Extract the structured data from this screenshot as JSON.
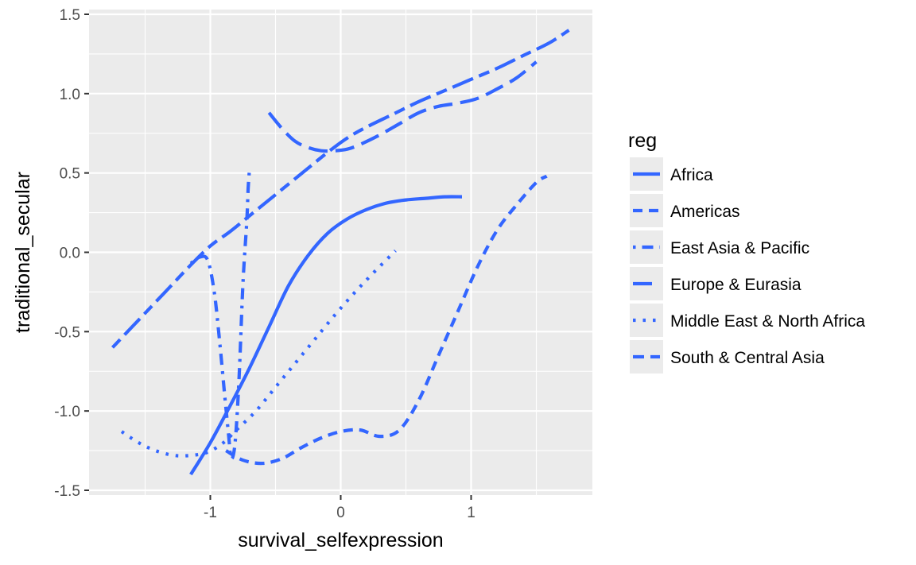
{
  "chart_data": {
    "type": "line",
    "xlabel": "survival_selfexpression",
    "ylabel": "traditional_secular",
    "xlim": [
      -1.93,
      1.93
    ],
    "ylim": [
      -1.53,
      1.53
    ],
    "x_ticks": [
      -1,
      0,
      1
    ],
    "x_tick_labels": [
      "-1",
      "0",
      "1"
    ],
    "y_ticks": [
      -1.5,
      -1.0,
      -0.5,
      0.0,
      0.5,
      1.0,
      1.5
    ],
    "y_tick_labels": [
      "-1.5",
      "-1.0",
      "-0.5",
      "0.0",
      "0.5",
      "1.0",
      "1.5"
    ],
    "grid": true,
    "panel_background": "#ebebeb",
    "line_color": "#3366ff",
    "legend": {
      "title": "reg",
      "placement": "right",
      "entries": [
        "Africa",
        "Americas",
        "East Asia & Pacific",
        "Europe & Eurasia",
        "Middle East & North Africa",
        "South & Central Asia"
      ]
    },
    "series": [
      {
        "name": "Africa",
        "linetype": "solid",
        "x": [
          -1.15,
          -1.0,
          -0.85,
          -0.7,
          -0.55,
          -0.4,
          -0.25,
          -0.1,
          0.05,
          0.2,
          0.35,
          0.5,
          0.65,
          0.8,
          0.93
        ],
        "y": [
          -1.4,
          -1.2,
          -0.97,
          -0.73,
          -0.47,
          -0.21,
          -0.02,
          0.12,
          0.21,
          0.27,
          0.31,
          0.33,
          0.34,
          0.35,
          0.35
        ]
      },
      {
        "name": "Americas",
        "linetype": "dashed",
        "x": [
          -0.88,
          -0.75,
          -0.6,
          -0.45,
          -0.3,
          -0.15,
          0.0,
          0.15,
          0.3,
          0.45,
          0.6,
          0.75,
          0.9,
          1.05,
          1.2,
          1.35,
          1.5,
          1.58
        ],
        "y": [
          -1.25,
          -1.31,
          -1.33,
          -1.3,
          -1.23,
          -1.17,
          -1.13,
          -1.12,
          -1.16,
          -1.12,
          -0.93,
          -0.65,
          -0.37,
          -0.09,
          0.14,
          0.3,
          0.44,
          0.48
        ]
      },
      {
        "name": "East Asia & Pacific",
        "linetype": "dotdash",
        "x": [
          -1.15,
          -1.08,
          -1.02,
          -0.97,
          -0.93,
          -0.89,
          -0.86,
          -0.84,
          -0.81,
          -0.78,
          -0.75,
          -0.72,
          -0.71,
          -0.7
        ],
        "y": [
          -0.07,
          -0.03,
          -0.05,
          -0.25,
          -0.55,
          -0.9,
          -1.15,
          -1.3,
          -1.2,
          -0.8,
          -0.2,
          0.2,
          0.4,
          0.52
        ]
      },
      {
        "name": "Europe & Eurasia",
        "linetype": "longdash",
        "x": [
          -0.55,
          -0.45,
          -0.35,
          -0.25,
          -0.15,
          -0.05,
          0.05,
          0.15,
          0.3,
          0.45,
          0.6,
          0.75,
          0.9,
          1.05,
          1.2,
          1.35,
          1.5
        ],
        "y": [
          0.88,
          0.78,
          0.7,
          0.66,
          0.64,
          0.64,
          0.65,
          0.68,
          0.74,
          0.81,
          0.88,
          0.92,
          0.94,
          0.97,
          1.03,
          1.1,
          1.2
        ]
      },
      {
        "name": "Middle East & North Africa",
        "linetype": "dotted",
        "x": [
          -1.68,
          -1.55,
          -1.42,
          -1.28,
          -1.15,
          -1.02,
          -0.9,
          -0.8,
          -0.65,
          -0.5,
          -0.35,
          -0.2,
          -0.05,
          0.1,
          0.25,
          0.42
        ],
        "y": [
          -1.13,
          -1.2,
          -1.25,
          -1.28,
          -1.28,
          -1.26,
          -1.2,
          -1.12,
          -1.0,
          -0.85,
          -0.7,
          -0.55,
          -0.4,
          -0.26,
          -0.13,
          0.01
        ]
      },
      {
        "name": "South & Central Asia",
        "linetype": "twodash",
        "x": [
          -1.75,
          -1.6,
          -1.45,
          -1.3,
          -1.15,
          -1.0,
          -0.85,
          -0.7,
          -0.55,
          -0.4,
          -0.25,
          -0.1,
          0.05,
          0.2,
          0.4,
          0.6,
          0.8,
          1.0,
          1.2,
          1.4,
          1.6,
          1.75
        ],
        "y": [
          -0.6,
          -0.47,
          -0.34,
          -0.21,
          -0.08,
          0.04,
          0.13,
          0.23,
          0.33,
          0.43,
          0.53,
          0.63,
          0.72,
          0.79,
          0.87,
          0.95,
          1.02,
          1.09,
          1.16,
          1.24,
          1.32,
          1.4
        ]
      }
    ]
  }
}
